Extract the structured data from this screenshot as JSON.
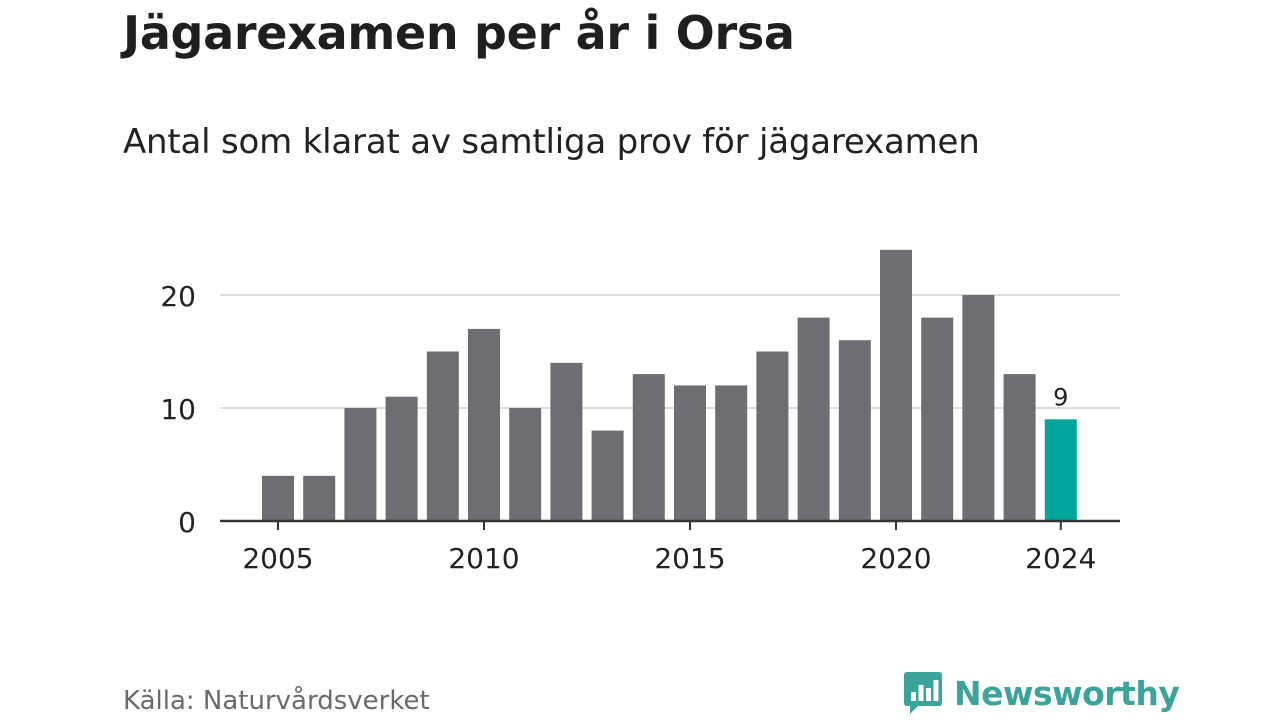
{
  "title": "Jägarexamen per år i Orsa",
  "subtitle": "Antal som klarat av samtliga prov för jägarexamen",
  "source": "Källa: Naturvårdsverket",
  "brand": {
    "name": "Newsworthy",
    "color": "#3aa39a"
  },
  "colors": {
    "bar": "#6d6d74",
    "highlight": "#00a69c",
    "grid": "#dcdcdc",
    "axis": "#333333"
  },
  "chart_data": {
    "type": "bar",
    "title": "Jägarexamen per år i Orsa",
    "subtitle": "Antal som klarat av samtliga prov för jägarexamen",
    "xlabel": "",
    "ylabel": "",
    "categories": [
      2005,
      2006,
      2007,
      2008,
      2009,
      2010,
      2011,
      2012,
      2013,
      2014,
      2015,
      2016,
      2017,
      2018,
      2019,
      2020,
      2021,
      2022,
      2023,
      2024
    ],
    "values": [
      4,
      4,
      10,
      11,
      15,
      17,
      10,
      14,
      8,
      13,
      12,
      12,
      15,
      18,
      16,
      24,
      18,
      20,
      13,
      9
    ],
    "ylim": [
      0,
      24
    ],
    "yticks": [
      0,
      10,
      20
    ],
    "xticks": [
      2005,
      2010,
      2015,
      2020,
      2024
    ],
    "highlight": {
      "category": 2024,
      "label": "9"
    },
    "grid": true,
    "legend": "none"
  }
}
